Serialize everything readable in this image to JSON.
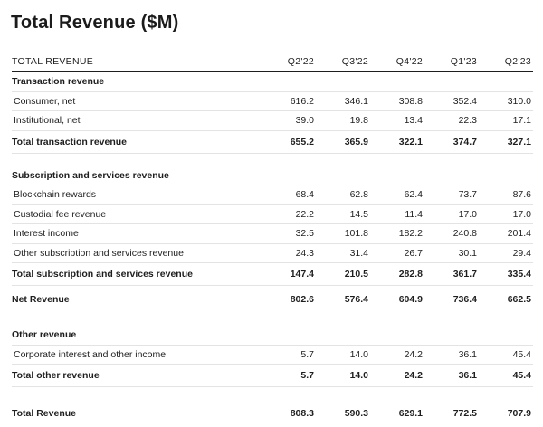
{
  "title": "Total Revenue ($M)",
  "header": {
    "label": "TOTAL REVENUE",
    "periods": [
      "Q2'22",
      "Q3'22",
      "Q4'22",
      "Q1'23",
      "Q2'23"
    ]
  },
  "transaction": {
    "heading": "Transaction revenue",
    "rows": [
      {
        "label": "Consumer, net",
        "values": [
          "616.2",
          "346.1",
          "308.8",
          "352.4",
          "310.0"
        ]
      },
      {
        "label": "Institutional, net",
        "values": [
          "39.0",
          "19.8",
          "13.4",
          "22.3",
          "17.1"
        ]
      }
    ],
    "total": {
      "label": "Total transaction revenue",
      "values": [
        "655.2",
        "365.9",
        "322.1",
        "374.7",
        "327.1"
      ]
    }
  },
  "subscription": {
    "heading": "Subscription and services revenue",
    "rows": [
      {
        "label": "Blockchain rewards",
        "values": [
          "68.4",
          "62.8",
          "62.4",
          "73.7",
          "87.6"
        ]
      },
      {
        "label": "Custodial fee revenue",
        "values": [
          "22.2",
          "14.5",
          "11.4",
          "17.0",
          "17.0"
        ]
      },
      {
        "label": "Interest income",
        "values": [
          "32.5",
          "101.8",
          "182.2",
          "240.8",
          "201.4"
        ]
      },
      {
        "label": "Other subscription and services revenue",
        "values": [
          "24.3",
          "31.4",
          "26.7",
          "30.1",
          "29.4"
        ]
      }
    ],
    "total": {
      "label": "Total subscription and services revenue",
      "values": [
        "147.4",
        "210.5",
        "282.8",
        "361.7",
        "335.4"
      ]
    }
  },
  "net_revenue": {
    "label": "Net Revenue",
    "values": [
      "802.6",
      "576.4",
      "604.9",
      "736.4",
      "662.5"
    ]
  },
  "other": {
    "heading": "Other revenue",
    "rows": [
      {
        "label": "Corporate interest and other income",
        "values": [
          "5.7",
          "14.0",
          "24.2",
          "36.1",
          "45.4"
        ]
      }
    ],
    "total": {
      "label": "Total other revenue",
      "values": [
        "5.7",
        "14.0",
        "24.2",
        "36.1",
        "45.4"
      ]
    }
  },
  "total_revenue": {
    "label": "Total Revenue",
    "values": [
      "808.3",
      "590.3",
      "629.1",
      "772.5",
      "707.9"
    ]
  }
}
